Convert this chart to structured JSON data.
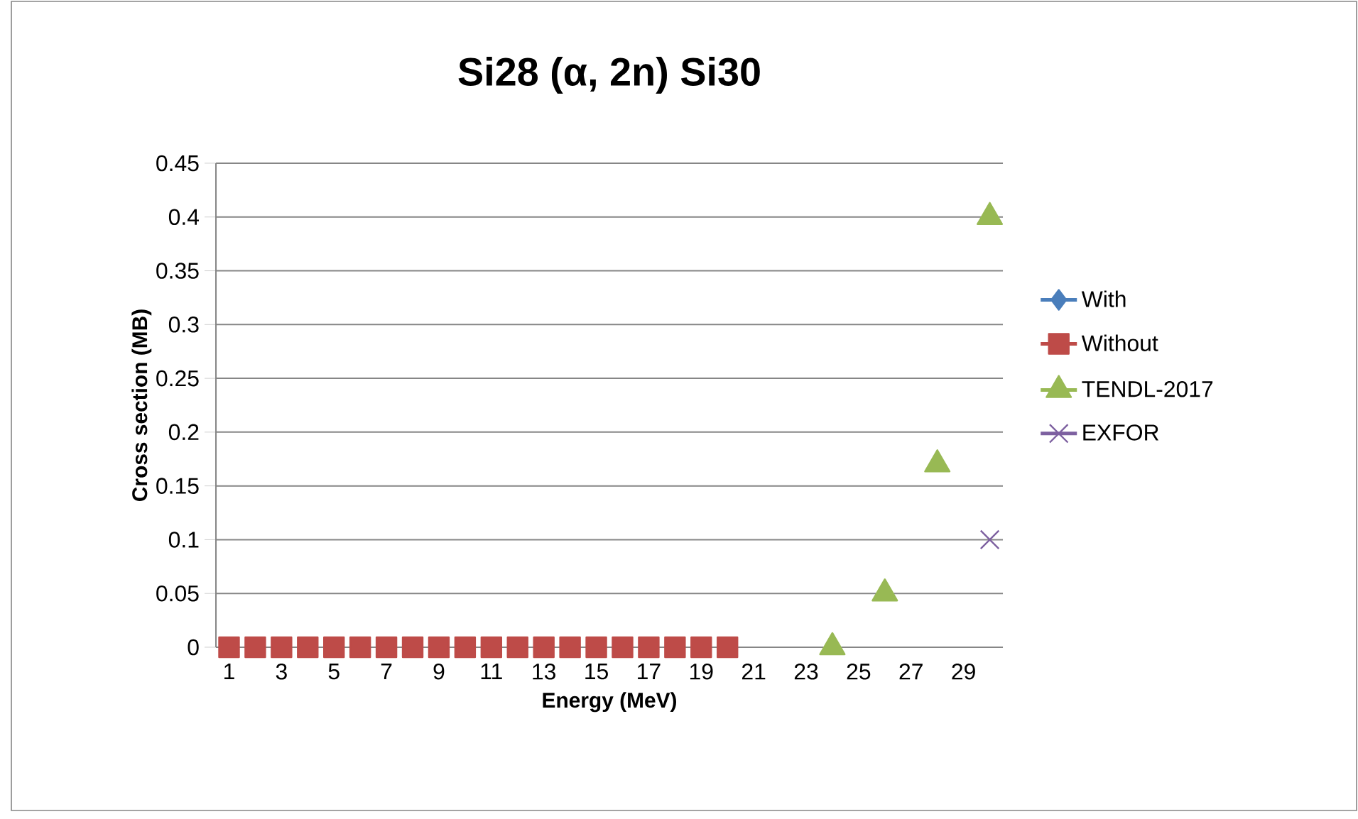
{
  "chart_data": {
    "type": "line",
    "title": "Si28 (α, 2n) Si30",
    "xlabel": "Energy (MeV)",
    "ylabel": "Cross section (MB)",
    "categories": [
      "1",
      null,
      "3",
      null,
      "5",
      null,
      "7",
      null,
      "9",
      null,
      "11",
      null,
      "13",
      null,
      "15",
      null,
      "17",
      null,
      "19",
      null,
      "21",
      null,
      "23",
      null,
      "25",
      null,
      "27",
      null,
      "29",
      null
    ],
    "series": [
      {
        "name": "With",
        "color": "#4a7ebb",
        "marker": "diamond",
        "values": [
          null,
          null,
          null,
          null,
          null,
          null,
          null,
          null,
          null,
          null,
          null,
          null,
          null,
          null,
          null,
          null,
          null,
          null,
          null,
          null,
          null,
          null,
          null,
          null,
          null,
          null,
          null,
          null,
          null,
          null
        ]
      },
      {
        "name": "Without",
        "type": "scatter",
        "color": "#be4b48",
        "marker": "square",
        "values": [
          0,
          0,
          0,
          0,
          0,
          0,
          0,
          0,
          0,
          0,
          0,
          0,
          0,
          0,
          0,
          0,
          0,
          0,
          0,
          0,
          null,
          null,
          null,
          null,
          null,
          null,
          null,
          null,
          null,
          null
        ]
      },
      {
        "name": "TENDL-2017",
        "type": "scatter",
        "color": "#98b954",
        "marker": "triangle",
        "values": [
          null,
          null,
          null,
          null,
          null,
          null,
          null,
          null,
          null,
          null,
          null,
          null,
          null,
          null,
          null,
          null,
          null,
          null,
          null,
          null,
          null,
          null,
          null,
          0,
          null,
          0.05,
          null,
          0.17,
          null,
          0.4
        ]
      },
      {
        "name": "EXFOR",
        "type": "scatter",
        "color": "#7d60a0",
        "marker": "cross",
        "values": [
          null,
          null,
          null,
          null,
          null,
          null,
          null,
          null,
          null,
          null,
          null,
          null,
          null,
          null,
          null,
          null,
          null,
          null,
          null,
          null,
          null,
          null,
          null,
          null,
          null,
          null,
          null,
          null,
          null,
          0.1
        ]
      }
    ],
    "ylim": [
      0,
      0.45
    ],
    "yticks": [
      0,
      0.05,
      0.1,
      0.15,
      0.2,
      0.25,
      0.3,
      0.35,
      0.4,
      0.45
    ],
    "grid": "y",
    "legend": "right"
  }
}
